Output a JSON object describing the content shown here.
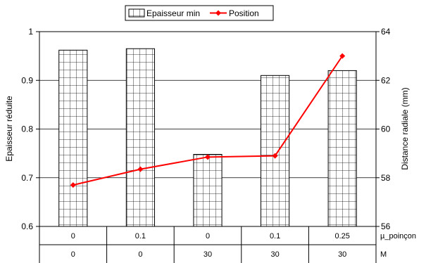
{
  "chart_data": {
    "type": "bar+line",
    "legend": {
      "placement": "top",
      "entries": [
        {
          "label": "Epaisseur min",
          "kind": "bar-hatched"
        },
        {
          "label": "Position",
          "kind": "line-diamond",
          "color": "#ff0000"
        }
      ]
    },
    "y_left": {
      "label": "Epaisseur réduite",
      "range": [
        0.6,
        1.0
      ],
      "ticks": [
        "0.6",
        "0.7",
        "0.8",
        "0.9",
        "1"
      ],
      "tick_values": [
        0.6,
        0.7,
        0.8,
        0.9,
        1.0
      ]
    },
    "y_right": {
      "label": "Distance radiale (mm)",
      "range": [
        56,
        64
      ],
      "ticks": [
        "56",
        "58",
        "60",
        "62",
        "64"
      ],
      "tick_values": [
        56,
        58,
        60,
        62,
        64
      ]
    },
    "x_table": {
      "row_labels": [
        "µ_poinçon",
        "M"
      ],
      "rows": [
        [
          "0",
          "0.1",
          "0",
          "0.1",
          "0.25"
        ],
        [
          "0",
          "0",
          "30",
          "30",
          "30"
        ]
      ]
    },
    "grid": true,
    "series": [
      {
        "name": "Epaisseur min",
        "axis": "left",
        "type": "bar",
        "values": [
          0.962,
          0.965,
          0.748,
          0.91,
          0.92
        ]
      },
      {
        "name": "Position",
        "axis": "right",
        "type": "line",
        "color": "#ff0000",
        "values": [
          57.7,
          58.35,
          58.85,
          58.9,
          63.0
        ]
      }
    ]
  }
}
